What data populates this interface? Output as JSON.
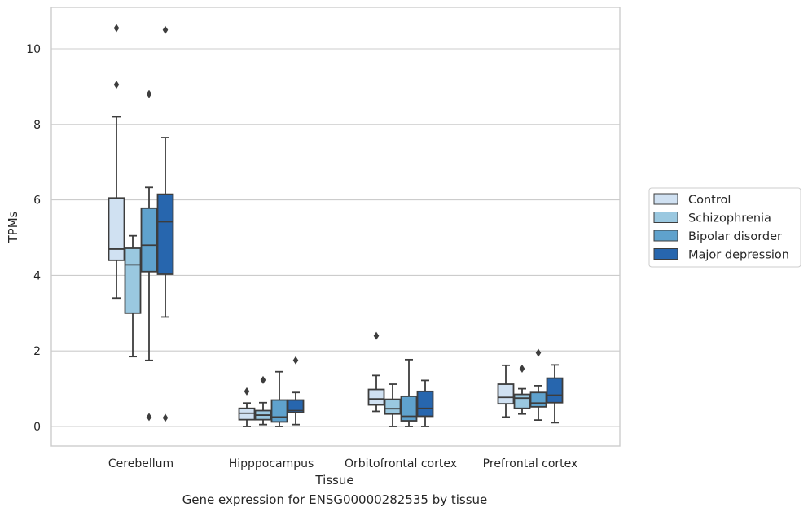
{
  "caption": "Gene expression for ENSG00000282535 by tissue",
  "chart_data": {
    "type": "box",
    "xlabel": "Tissue",
    "ylabel": "TPMs",
    "ylim": [
      -0.5,
      11.1
    ],
    "yticks": [
      0,
      2,
      4,
      6,
      8,
      10
    ],
    "grid": "horizontal",
    "legend_position": "right",
    "categories": [
      "Cerebellum",
      "Hipppocampus",
      "Orbitofrontal cortex",
      "Prefrontal cortex"
    ],
    "series": [
      {
        "name": "Control",
        "color": "#d0e1f2",
        "boxes": [
          {
            "whisker_low": 3.4,
            "q1": 4.4,
            "median": 4.7,
            "q3": 6.05,
            "whisker_high": 8.2,
            "outliers": [
              10.55,
              9.05
            ]
          },
          {
            "whisker_low": 0.0,
            "q1": 0.18,
            "median": 0.35,
            "q3": 0.48,
            "whisker_high": 0.62,
            "outliers": [
              0.93
            ]
          },
          {
            "whisker_low": 0.4,
            "q1": 0.57,
            "median": 0.73,
            "q3": 0.98,
            "whisker_high": 1.35,
            "outliers": [
              2.4
            ]
          },
          {
            "whisker_low": 0.25,
            "q1": 0.6,
            "median": 0.77,
            "q3": 1.12,
            "whisker_high": 1.62,
            "outliers": []
          }
        ]
      },
      {
        "name": "Schizophrenia",
        "color": "#9ac8e0",
        "boxes": [
          {
            "whisker_low": 1.85,
            "q1": 3.0,
            "median": 4.28,
            "q3": 4.72,
            "whisker_high": 5.05,
            "outliers": []
          },
          {
            "whisker_low": 0.05,
            "q1": 0.18,
            "median": 0.3,
            "q3": 0.42,
            "whisker_high": 0.63,
            "outliers": [
              1.23
            ]
          },
          {
            "whisker_low": 0.0,
            "q1": 0.33,
            "median": 0.47,
            "q3": 0.72,
            "whisker_high": 1.12,
            "outliers": []
          },
          {
            "whisker_low": 0.33,
            "q1": 0.48,
            "median": 0.75,
            "q3": 0.85,
            "whisker_high": 1.0,
            "outliers": [
              1.53
            ]
          }
        ]
      },
      {
        "name": "Bipolar disorder",
        "color": "#5fa2cd",
        "boxes": [
          {
            "whisker_low": 1.75,
            "q1": 4.1,
            "median": 4.8,
            "q3": 5.78,
            "whisker_high": 6.33,
            "outliers": [
              8.8,
              0.25
            ]
          },
          {
            "whisker_low": 0.0,
            "q1": 0.12,
            "median": 0.25,
            "q3": 0.7,
            "whisker_high": 1.45,
            "outliers": []
          },
          {
            "whisker_low": 0.0,
            "q1": 0.15,
            "median": 0.27,
            "q3": 0.8,
            "whisker_high": 1.77,
            "outliers": []
          },
          {
            "whisker_low": 0.17,
            "q1": 0.52,
            "median": 0.62,
            "q3": 0.9,
            "whisker_high": 1.08,
            "outliers": [
              1.95
            ]
          }
        ]
      },
      {
        "name": "Major depression",
        "color": "#2766ae",
        "boxes": [
          {
            "whisker_low": 2.9,
            "q1": 4.03,
            "median": 5.42,
            "q3": 6.15,
            "whisker_high": 7.65,
            "outliers": [
              10.5,
              0.23
            ]
          },
          {
            "whisker_low": 0.05,
            "q1": 0.37,
            "median": 0.42,
            "q3": 0.7,
            "whisker_high": 0.9,
            "outliers": [
              1.75
            ]
          },
          {
            "whisker_low": 0.0,
            "q1": 0.27,
            "median": 0.48,
            "q3": 0.93,
            "whisker_high": 1.22,
            "outliers": []
          },
          {
            "whisker_low": 0.1,
            "q1": 0.63,
            "median": 0.83,
            "q3": 1.28,
            "whisker_high": 1.63,
            "outliers": []
          }
        ]
      }
    ]
  }
}
